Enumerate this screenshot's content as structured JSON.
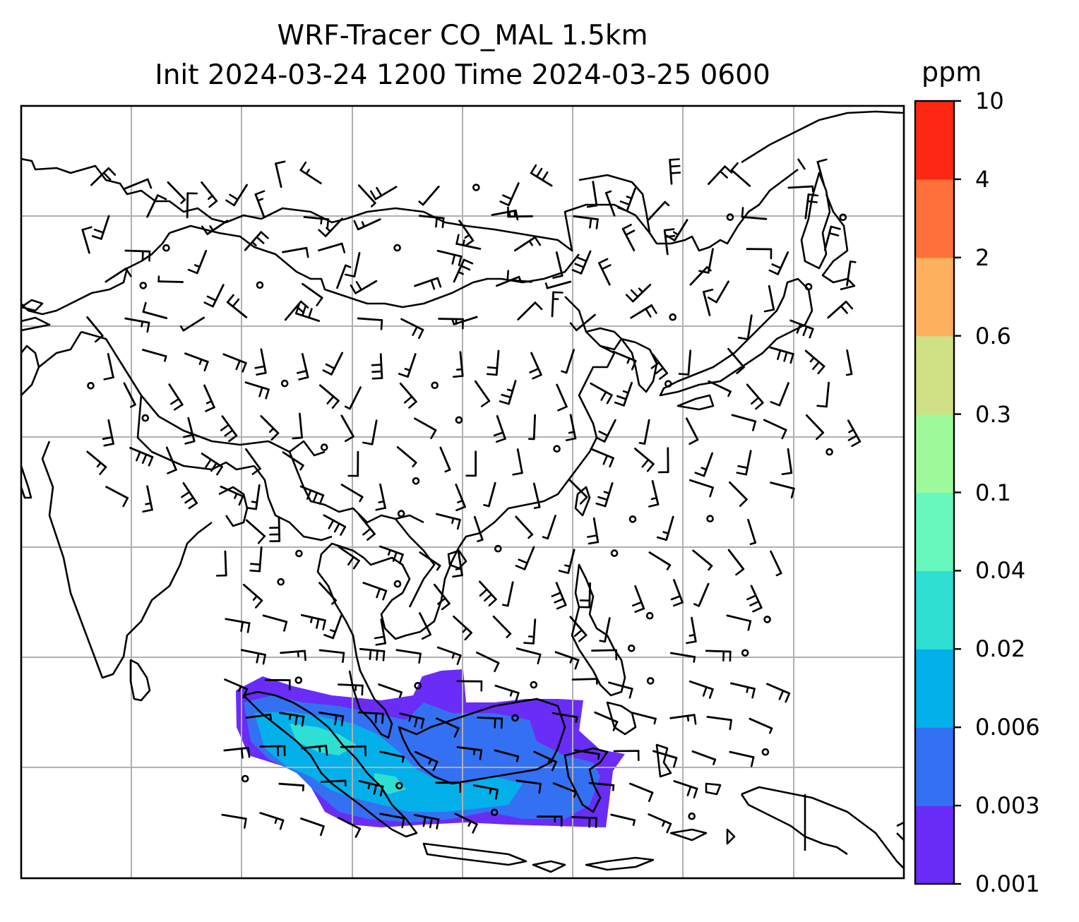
{
  "title": {
    "line1": "WRF-Tracer CO_MAL 1.5km",
    "line2": "Init 2024-03-24 1200 Time 2024-03-25 0600"
  },
  "colorbar": {
    "unit": "ppm",
    "levels": [
      "0.001",
      "0.003",
      "0.006",
      "0.02",
      "0.04",
      "0.1",
      "0.3",
      "0.6",
      "2",
      "4",
      "10"
    ],
    "colors": [
      "#6a2cf7",
      "#3471f2",
      "#04b0ea",
      "#2fdfd3",
      "#67f8bd",
      "#9ef99a",
      "#d0e086",
      "#feb05f",
      "#fe7039",
      "#fd2714"
    ]
  },
  "map": {
    "frame_color": "#000000",
    "gridline_color": "#b0b0b0",
    "coastline_color": "#000000",
    "wind_barb_color": "#000000",
    "tracer_plume_colors": [
      "#6a2cf7",
      "#3471f2",
      "#04b0ea",
      "#2fdfd3"
    ]
  }
}
